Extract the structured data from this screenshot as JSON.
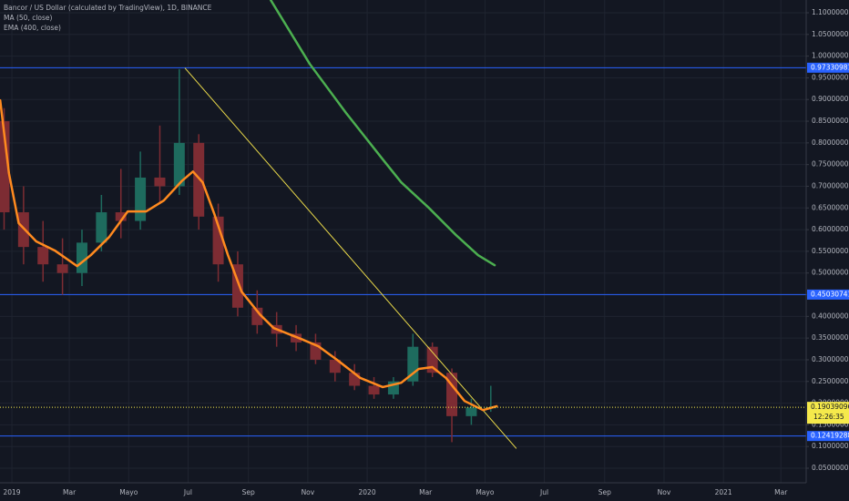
{
  "chart_data": {
    "type": "candlestick",
    "title": "Bancor / US Dollar (calculated by TradingView), 1D, BINANCE",
    "x": [
      -8,
      12,
      32,
      52,
      72,
      92,
      112,
      132,
      152,
      172,
      192,
      212,
      232,
      252,
      272,
      292,
      312,
      332,
      352,
      372,
      392,
      412,
      432,
      452,
      472,
      492
    ],
    "open": [
      0.85,
      0.64,
      0.56,
      0.52,
      0.5,
      0.57,
      0.64,
      0.62,
      0.72,
      0.7,
      0.8,
      0.63,
      0.52,
      0.42,
      0.38,
      0.36,
      0.34,
      0.3,
      0.27,
      0.24,
      0.22,
      0.25,
      0.33,
      0.27,
      0.17,
      0.19
    ],
    "high": [
      0.88,
      0.7,
      0.62,
      0.58,
      0.6,
      0.68,
      0.74,
      0.78,
      0.84,
      0.97,
      0.82,
      0.66,
      0.55,
      0.46,
      0.41,
      0.38,
      0.36,
      0.32,
      0.29,
      0.26,
      0.26,
      0.36,
      0.34,
      0.28,
      0.21,
      0.24
    ],
    "low": [
      0.6,
      0.52,
      0.48,
      0.45,
      0.47,
      0.55,
      0.58,
      0.6,
      0.66,
      0.68,
      0.6,
      0.48,
      0.4,
      0.36,
      0.33,
      0.32,
      0.29,
      0.25,
      0.23,
      0.21,
      0.21,
      0.24,
      0.26,
      0.11,
      0.15,
      0.18
    ],
    "close": [
      0.64,
      0.56,
      0.52,
      0.5,
      0.57,
      0.64,
      0.62,
      0.72,
      0.7,
      0.8,
      0.63,
      0.52,
      0.42,
      0.38,
      0.36,
      0.34,
      0.3,
      0.27,
      0.24,
      0.22,
      0.25,
      0.33,
      0.27,
      0.17,
      0.19,
      0.19
    ],
    "up_color": "#1e6b5e",
    "down_color": "#7d2c33",
    "series": [
      {
        "name": "MA (50, close)",
        "color": "#ff8a1f",
        "x": [
          -12,
          -3,
          7,
          25,
          44,
          67,
          81,
          100,
          119,
          138,
          156,
          175,
          186,
          196,
          208,
          222,
          236,
          255,
          269,
          297,
          315,
          334,
          358,
          381,
          400,
          418,
          432,
          446,
          465,
          484,
          498
        ],
        "values": [
          0.898,
          0.73,
          0.615,
          0.573,
          0.552,
          0.516,
          0.541,
          0.583,
          0.642,
          0.642,
          0.667,
          0.713,
          0.734,
          0.709,
          0.636,
          0.541,
          0.457,
          0.404,
          0.373,
          0.348,
          0.331,
          0.3,
          0.258,
          0.237,
          0.247,
          0.279,
          0.283,
          0.258,
          0.205,
          0.184,
          0.193
        ]
      },
      {
        "name": "EMA (400, close)",
        "color": "#4caf50",
        "x": [
          266,
          306,
          344,
          381,
          400,
          428,
          456,
          479,
          496
        ],
        "values": [
          1.129,
          0.982,
          0.867,
          0.762,
          0.709,
          0.651,
          0.588,
          0.541,
          0.518
        ]
      }
    ],
    "trendline": {
      "color": "#e8d84a",
      "x": [
        178,
        518
      ],
      "values": [
        0.972,
        0.096
      ]
    },
    "levels": [
      {
        "value": 0.97330981,
        "color": "#2962ff"
      },
      {
        "value": 0.45030741,
        "color": "#2962ff"
      },
      {
        "value": 0.12419288,
        "color": "#2962ff"
      }
    ],
    "last_price": {
      "value": 0.19039096,
      "countdown": "12:26:35",
      "color": "#f5e94b"
    },
    "xlim": [
      -12.2,
      816
    ],
    "ylim": [
      0.0164,
      1.1294
    ],
    "xticks": [
      {
        "value": 0,
        "label": "2019"
      },
      {
        "value": 59,
        "label": "Mar"
      },
      {
        "value": 120,
        "label": "Mayo"
      },
      {
        "value": 181,
        "label": "Jul"
      },
      {
        "value": 243,
        "label": "Sep"
      },
      {
        "value": 304,
        "label": "Nov"
      },
      {
        "value": 365,
        "label": "2020"
      },
      {
        "value": 425,
        "label": "Mar"
      },
      {
        "value": 486,
        "label": "Mayo"
      },
      {
        "value": 547,
        "label": "Jul"
      },
      {
        "value": 609,
        "label": "Sep"
      },
      {
        "value": 670,
        "label": "Nov"
      },
      {
        "value": 731,
        "label": "2021"
      },
      {
        "value": 790,
        "label": "Mar"
      }
    ],
    "yticks": [
      {
        "value": 0.05,
        "label": "0.05000000"
      },
      {
        "value": 0.1,
        "label": "0.10000000"
      },
      {
        "value": 0.15,
        "label": "0.15000000"
      },
      {
        "value": 0.2,
        "label": "0.20000000"
      },
      {
        "value": 0.25,
        "label": "0.25000000"
      },
      {
        "value": 0.3,
        "label": "0.30000000"
      },
      {
        "value": 0.35,
        "label": "0.35000000"
      },
      {
        "value": 0.4,
        "label": "0.40000000"
      },
      {
        "value": 0.45,
        "label": "0.45000000"
      },
      {
        "value": 0.5,
        "label": "0.50000000"
      },
      {
        "value": 0.55,
        "label": "0.55000000"
      },
      {
        "value": 0.6,
        "label": "0.60000000"
      },
      {
        "value": 0.65,
        "label": "0.65000000"
      },
      {
        "value": 0.7,
        "label": "0.70000000"
      },
      {
        "value": 0.75,
        "label": "0.75000000"
      },
      {
        "value": 0.8,
        "label": "0.80000000"
      },
      {
        "value": 0.85,
        "label": "0.85000000"
      },
      {
        "value": 0.9,
        "label": "0.90000000"
      },
      {
        "value": 0.95,
        "label": "0.95000000"
      },
      {
        "value": 1.0,
        "label": "1.00000000"
      },
      {
        "value": 1.05,
        "label": "1.05000000"
      },
      {
        "value": 1.1,
        "label": "1.10000000"
      }
    ],
    "grid": true
  }
}
